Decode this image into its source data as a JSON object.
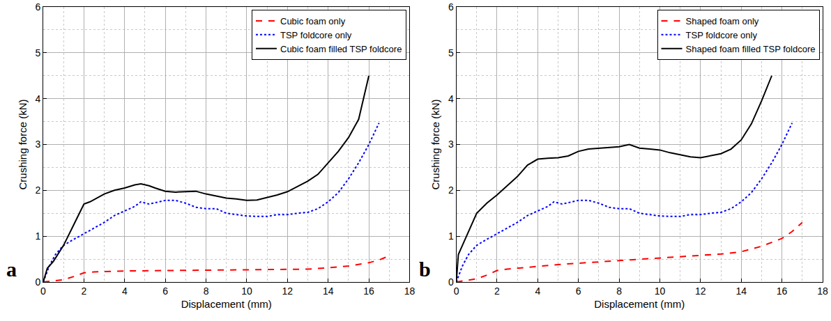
{
  "chart_data": [
    {
      "type": "line",
      "annotations": [
        "a"
      ],
      "x_label": "Displacement (mm)",
      "y_label": "Crushing force (kN)",
      "xlim": [
        0,
        18
      ],
      "xticks": [
        0,
        2,
        4,
        6,
        8,
        10,
        12,
        14,
        16,
        18
      ],
      "ylim": [
        0,
        6
      ],
      "yticks": [
        0,
        1,
        2,
        3,
        4,
        5,
        6
      ],
      "grid": true,
      "legend": "upper right",
      "series": [
        {
          "name": "Cubic foam only",
          "color": "#ff0000",
          "line_style": "dashed",
          "x": [
            0,
            0.5,
            1,
            1.5,
            2,
            2.5,
            3,
            4,
            6,
            8,
            10,
            12,
            13,
            14,
            15,
            16,
            16.5,
            17
          ],
          "values": [
            0,
            0.02,
            0.05,
            0.12,
            0.2,
            0.22,
            0.23,
            0.24,
            0.25,
            0.26,
            0.26,
            0.27,
            0.28,
            0.31,
            0.35,
            0.42,
            0.48,
            0.57
          ]
        },
        {
          "name": "TSP foldcore only",
          "color": "#0000ff",
          "line_style": "dotted",
          "x": [
            0,
            0.3,
            0.6,
            1,
            1.5,
            2,
            2.5,
            3,
            3.5,
            4,
            4.5,
            4.8,
            5.2,
            6,
            6.5,
            7,
            7.5,
            8,
            8.5,
            9,
            9.5,
            10,
            10.5,
            11,
            11.5,
            12,
            12.5,
            13,
            13.5,
            14,
            14.5,
            15,
            15.5,
            16,
            16.5
          ],
          "values": [
            0,
            0.35,
            0.6,
            0.8,
            0.93,
            1.05,
            1.17,
            1.3,
            1.45,
            1.55,
            1.65,
            1.75,
            1.7,
            1.78,
            1.78,
            1.72,
            1.63,
            1.6,
            1.6,
            1.5,
            1.47,
            1.44,
            1.43,
            1.43,
            1.47,
            1.47,
            1.5,
            1.52,
            1.6,
            1.75,
            1.95,
            2.25,
            2.6,
            3.0,
            3.47
          ]
        },
        {
          "name": "Cubic foam filled TSP foldcore",
          "color": "#000000",
          "line_style": "solid",
          "x": [
            0,
            0.2,
            0.5,
            1,
            1.5,
            2,
            2.3,
            2.5,
            3,
            3.5,
            4,
            4.5,
            4.8,
            5.2,
            5.5,
            6,
            6.5,
            7,
            7.5,
            8,
            8.5,
            9,
            9.5,
            10,
            10.5,
            11,
            11.5,
            12,
            12.5,
            13,
            13.5,
            14,
            14.5,
            15,
            15.5,
            16
          ],
          "values": [
            0,
            0.3,
            0.45,
            0.8,
            1.25,
            1.7,
            1.75,
            1.8,
            1.92,
            2.0,
            2.05,
            2.12,
            2.14,
            2.1,
            2.05,
            1.98,
            1.96,
            1.97,
            1.98,
            1.92,
            1.87,
            1.83,
            1.81,
            1.78,
            1.79,
            1.84,
            1.9,
            1.97,
            2.08,
            2.2,
            2.35,
            2.6,
            2.85,
            3.15,
            3.55,
            4.5
          ]
        }
      ]
    },
    {
      "type": "line",
      "annotations": [
        "b"
      ],
      "x_label": "Displacement (mm)",
      "y_label": "Crushing force (kN)",
      "xlim": [
        0,
        18
      ],
      "xticks": [
        0,
        2,
        4,
        6,
        8,
        10,
        12,
        14,
        16,
        18
      ],
      "ylim": [
        0,
        6
      ],
      "yticks": [
        0,
        1,
        2,
        3,
        4,
        5,
        6
      ],
      "grid": true,
      "legend": "upper right",
      "series": [
        {
          "name": "Shaped foam only",
          "color": "#ff0000",
          "line_style": "dashed",
          "x": [
            0,
            0.5,
            1,
            1.5,
            2,
            2.5,
            3,
            4,
            5,
            6,
            7,
            8,
            9,
            10,
            11,
            12,
            13,
            14,
            15,
            16,
            16.5,
            17
          ],
          "values": [
            0,
            0.03,
            0.07,
            0.15,
            0.25,
            0.28,
            0.3,
            0.35,
            0.38,
            0.41,
            0.44,
            0.47,
            0.5,
            0.53,
            0.56,
            0.58,
            0.61,
            0.66,
            0.78,
            0.95,
            1.1,
            1.3
          ]
        },
        {
          "name": "TSP foldcore only",
          "color": "#0000ff",
          "line_style": "dotted",
          "x": [
            0,
            0.3,
            0.6,
            1,
            1.5,
            2,
            2.5,
            3,
            3.5,
            4,
            4.5,
            4.8,
            5.2,
            6,
            6.5,
            7,
            7.5,
            8,
            8.5,
            9,
            9.5,
            10,
            10.5,
            11,
            11.5,
            12,
            12.5,
            13,
            13.5,
            14,
            14.5,
            15,
            15.5,
            16,
            16.5
          ],
          "values": [
            0,
            0.35,
            0.6,
            0.8,
            0.93,
            1.05,
            1.17,
            1.3,
            1.45,
            1.55,
            1.65,
            1.75,
            1.7,
            1.78,
            1.78,
            1.72,
            1.63,
            1.6,
            1.6,
            1.5,
            1.47,
            1.44,
            1.43,
            1.43,
            1.47,
            1.47,
            1.5,
            1.52,
            1.6,
            1.75,
            1.95,
            2.25,
            2.6,
            3.0,
            3.47
          ]
        },
        {
          "name": "Shaped foam filled TSP foldcore",
          "color": "#000000",
          "line_style": "solid",
          "x": [
            0,
            0.1,
            0.3,
            0.6,
            1,
            1.5,
            2,
            2.5,
            3,
            3.5,
            4,
            4.5,
            5,
            5.5,
            6,
            6.5,
            7,
            7.5,
            8,
            8.5,
            9,
            9.5,
            10,
            10.5,
            11,
            11.5,
            12,
            12.5,
            13,
            13.5,
            14,
            14.5,
            15,
            15.5
          ],
          "values": [
            0,
            0.6,
            0.8,
            1.1,
            1.5,
            1.72,
            1.9,
            2.1,
            2.3,
            2.55,
            2.68,
            2.7,
            2.71,
            2.75,
            2.85,
            2.9,
            2.92,
            2.93,
            2.95,
            3.0,
            2.92,
            2.9,
            2.88,
            2.82,
            2.78,
            2.73,
            2.71,
            2.75,
            2.8,
            2.9,
            3.1,
            3.45,
            3.95,
            4.5
          ]
        }
      ]
    }
  ]
}
